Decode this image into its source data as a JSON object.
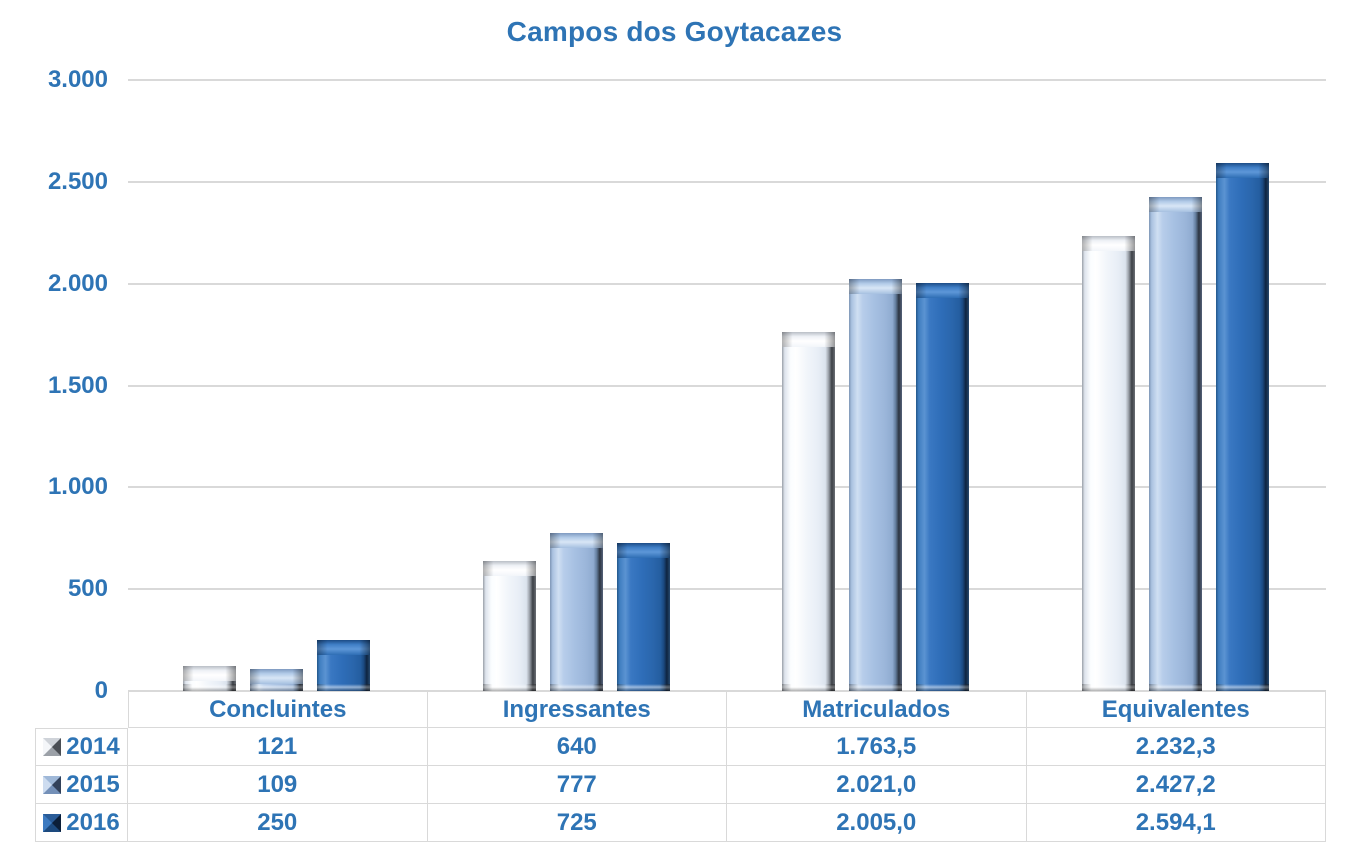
{
  "title": "Campos dos Goytacazes",
  "colors": {
    "title_text": "#2e74b5",
    "axis_text": "#2e74b5",
    "table_text": "#2e74b5",
    "gridline": "#d9d9d9",
    "table_border": "#d9d9d9",
    "background": "#ffffff",
    "series_2014": "#eef2f8",
    "series_2015": "#a6c0e2",
    "series_2016": "#2e6db8"
  },
  "icons": {
    "legend_key": "pyramid-swatch-icon"
  },
  "chart_data": {
    "type": "bar",
    "style": "3d-bevel",
    "title": "Campos dos Goytacazes",
    "categories": [
      "Concluintes",
      "Ingressantes",
      "Matriculados",
      "Equivalentes"
    ],
    "series": [
      {
        "name": "2014",
        "color": "#eef2f8",
        "values": [
          121,
          640,
          1763.5,
          2232.3
        ],
        "labels": [
          "121",
          "640",
          "1.763,5",
          "2.232,3"
        ]
      },
      {
        "name": "2015",
        "color": "#a6c0e2",
        "values": [
          109,
          777,
          2021.0,
          2427.2
        ],
        "labels": [
          "109",
          "777",
          "2.021,0",
          "2.427,2"
        ]
      },
      {
        "name": "2016",
        "color": "#2e6db8",
        "values": [
          250,
          725,
          2005.0,
          2594.1
        ],
        "labels": [
          "250",
          "725",
          "2.005,0",
          "2.594,1"
        ]
      }
    ],
    "y_axis": {
      "min": 0,
      "max": 3000,
      "tick_step": 500,
      "tick_labels": [
        "3.000",
        "2.500",
        "2.000",
        "1.500",
        "1.000",
        "500",
        "0"
      ]
    },
    "xlabel": "",
    "ylabel": "",
    "grid": true,
    "legend_position": "table-rows-left",
    "data_table_shown": true
  }
}
